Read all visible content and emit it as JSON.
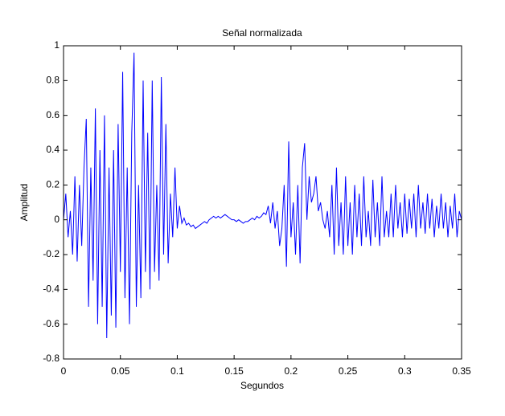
{
  "chart_data": {
    "type": "line",
    "title": "Señal normalizada",
    "x_label": "Segundos",
    "y_label": "Amplitud",
    "xlim": [
      0,
      0.35
    ],
    "ylim": [
      -0.8,
      1
    ],
    "xticks": [
      0,
      0.05,
      0.1,
      0.15,
      0.2,
      0.25,
      0.3,
      0.35
    ],
    "yticks": [
      -0.8,
      -0.6,
      -0.4,
      -0.2,
      0,
      0.2,
      0.4,
      0.6,
      0.8,
      1
    ],
    "x": [
      0,
      0.002,
      0.004,
      0.006,
      0.008,
      0.01,
      0.012,
      0.014,
      0.016,
      0.018,
      0.02,
      0.022,
      0.024,
      0.026,
      0.028,
      0.03,
      0.032,
      0.034,
      0.036,
      0.038,
      0.04,
      0.042,
      0.044,
      0.046,
      0.048,
      0.05,
      0.052,
      0.054,
      0.056,
      0.058,
      0.06,
      0.062,
      0.064,
      0.066,
      0.068,
      0.07,
      0.072,
      0.074,
      0.076,
      0.078,
      0.08,
      0.082,
      0.084,
      0.086,
      0.088,
      0.09,
      0.092,
      0.094,
      0.096,
      0.098,
      0.1,
      0.102,
      0.104,
      0.106,
      0.108,
      0.11,
      0.112,
      0.114,
      0.116,
      0.118,
      0.12,
      0.122,
      0.124,
      0.126,
      0.128,
      0.13,
      0.132,
      0.134,
      0.136,
      0.138,
      0.14,
      0.142,
      0.144,
      0.146,
      0.148,
      0.15,
      0.152,
      0.154,
      0.156,
      0.158,
      0.16,
      0.162,
      0.164,
      0.166,
      0.168,
      0.17,
      0.172,
      0.174,
      0.176,
      0.178,
      0.18,
      0.182,
      0.184,
      0.186,
      0.188,
      0.19,
      0.192,
      0.194,
      0.196,
      0.198,
      0.2,
      0.202,
      0.204,
      0.206,
      0.208,
      0.21,
      0.212,
      0.214,
      0.216,
      0.218,
      0.22,
      0.222,
      0.224,
      0.226,
      0.228,
      0.23,
      0.232,
      0.234,
      0.236,
      0.238,
      0.24,
      0.242,
      0.244,
      0.246,
      0.248,
      0.25,
      0.252,
      0.254,
      0.256,
      0.258,
      0.26,
      0.262,
      0.264,
      0.266,
      0.268,
      0.27,
      0.272,
      0.274,
      0.276,
      0.278,
      0.28,
      0.282,
      0.284,
      0.286,
      0.288,
      0.29,
      0.292,
      0.294,
      0.296,
      0.298,
      0.3,
      0.302,
      0.304,
      0.306,
      0.308,
      0.31,
      0.312,
      0.314,
      0.316,
      0.318,
      0.32,
      0.322,
      0.324,
      0.326,
      0.328,
      0.33,
      0.332,
      0.334,
      0.336,
      0.338,
      0.34,
      0.342,
      0.344,
      0.346,
      0.348,
      0.35
    ],
    "series": [
      {
        "color": "#0000ff",
        "values": [
          0,
          0.15,
          -0.1,
          0.05,
          -0.2,
          0.25,
          -0.24,
          0.2,
          -0.15,
          0.3,
          0.58,
          -0.5,
          0.3,
          -0.35,
          0.64,
          -0.6,
          0.4,
          -0.5,
          0.6,
          -0.68,
          0.3,
          -0.55,
          0.4,
          -0.62,
          0.55,
          -0.3,
          0.85,
          -0.45,
          0.3,
          -0.6,
          0.5,
          0.96,
          -0.5,
          0.2,
          -0.45,
          0.8,
          -0.3,
          0.5,
          -0.4,
          0.8,
          -0.3,
          0.2,
          -0.35,
          0.82,
          -0.2,
          0.55,
          -0.25,
          0.15,
          -0.1,
          0.3,
          -0.05,
          0.08,
          -0.02,
          0.01,
          -0.03,
          -0.02,
          -0.04,
          -0.03,
          -0.05,
          -0.04,
          -0.03,
          -0.02,
          -0.01,
          -0.02,
          0,
          0.01,
          0.02,
          0.01,
          0.02,
          0.01,
          0.02,
          0.03,
          0.02,
          0.01,
          0,
          0,
          -0.01,
          0,
          -0.01,
          -0.02,
          -0.01,
          -0.01,
          0,
          0.01,
          0,
          0.02,
          0.01,
          0.02,
          0.04,
          0.03,
          0.08,
          -0.02,
          0.1,
          -0.05,
          0.05,
          -0.15,
          -0.05,
          0.2,
          -0.27,
          0.45,
          -0.1,
          0.1,
          -0.2,
          0.2,
          -0.25,
          0.3,
          0.44,
          0,
          0.25,
          0.1,
          0.15,
          0.25,
          0.05,
          0.1,
          0,
          -0.05,
          0.05,
          -0.1,
          0.2,
          -0.2,
          0.3,
          -0.15,
          0.1,
          -0.2,
          0.25,
          -0.15,
          0.1,
          -0.2,
          0.2,
          -0.1,
          0.15,
          -0.15,
          0.25,
          -0.1,
          0.05,
          -0.15,
          0.23,
          -0.1,
          0.1,
          -0.15,
          0.25,
          -0.1,
          0.05,
          -0.1,
          0.15,
          -0.1,
          0.2,
          -0.05,
          0.1,
          -0.1,
          0.15,
          -0.08,
          0.12,
          -0.05,
          0.15,
          -0.1,
          0.2,
          -0.05,
          0.1,
          -0.08,
          0.15,
          -0.05,
          0.12,
          -0.1,
          0.08,
          -0.05,
          0.15,
          -0.05,
          0.1,
          -0.1,
          0.08,
          -0.05,
          0.15,
          -0.1,
          0.05,
          0
        ]
      }
    ]
  }
}
